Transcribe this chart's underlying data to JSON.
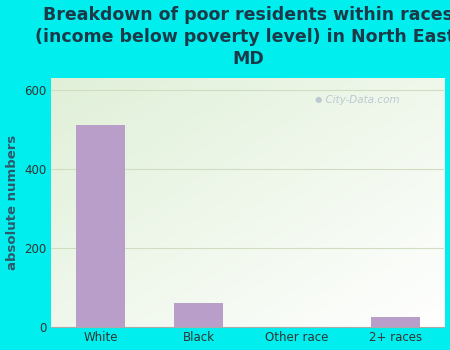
{
  "categories": [
    "White",
    "Black",
    "Other race",
    "2+ races"
  ],
  "values": [
    510,
    60,
    0,
    25
  ],
  "bar_color": "#b89ec8",
  "title_line1": "Breakdown of poor residents within races",
  "title_line2": "(income below poverty level) in North East,",
  "title_line3": "MD",
  "ylabel": "absolute numbers",
  "ylim": [
    0,
    630
  ],
  "yticks": [
    0,
    200,
    400,
    600
  ],
  "background_outer": "#00eeee",
  "title_color": "#1a3a4a",
  "title_fontsize": 12.5,
  "title_fontweight": "bold",
  "ylabel_fontsize": 9.5,
  "tick_fontsize": 8.5,
  "watermark_text": "  City-Data.com",
  "grid_color": "#d0ddc0",
  "plot_bg_colors": [
    "#e8f4e0",
    "#f8fdf5",
    "#ffffff"
  ],
  "axis_color": "#aaaaaa"
}
